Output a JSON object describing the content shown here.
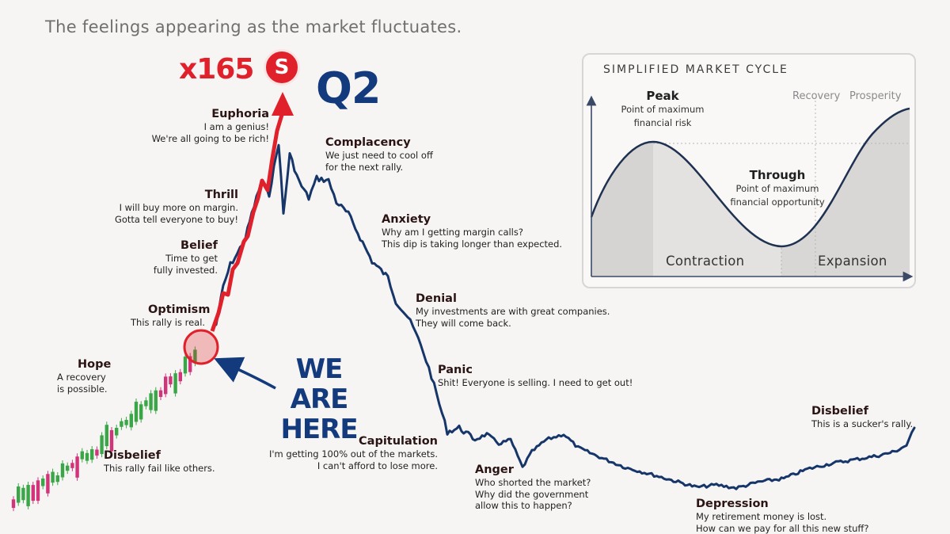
{
  "header": {
    "subtitle": "The feelings appearing as the market fluctuates."
  },
  "callouts": {
    "multiplier": "x165",
    "coin_symbol": "S",
    "quarter": "Q2",
    "position_line1": "WE ARE",
    "position_line2": "HERE",
    "accent_red": "#e0202a",
    "accent_blue": "#123a7c"
  },
  "stages": {
    "disbelief1": {
      "title": "Disbelief",
      "l1": "This rally fail like others."
    },
    "hope": {
      "title": "Hope",
      "l1": "A recovery",
      "l2": "is possible."
    },
    "optimism": {
      "title": "Optimism",
      "l1": "This rally is real."
    },
    "belief": {
      "title": "Belief",
      "l1": "Time to get",
      "l2": "fully invested."
    },
    "thrill": {
      "title": "Thrill",
      "l1": "I will buy more on margin.",
      "l2": "Gotta tell everyone to buy!"
    },
    "euphoria": {
      "title": "Euphoria",
      "l1": "I am a genius!",
      "l2": "We're all going to be rich!"
    },
    "complacency": {
      "title": "Complacency",
      "l1": "We just need to cool off",
      "l2": "for the next rally."
    },
    "anxiety": {
      "title": "Anxiety",
      "l1": "Why am I getting margin calls?",
      "l2": "This dip is taking longer than expected."
    },
    "denial": {
      "title": "Denial",
      "l1": "My investments are with great companies.",
      "l2": "They will come back."
    },
    "panic": {
      "title": "Panic",
      "l1": "Shit! Everyone is selling. I need to get out!"
    },
    "capitulation": {
      "title": "Capitulation",
      "l1": "I'm getting 100% out of the markets.",
      "l2": "I can't afford to lose more."
    },
    "anger": {
      "title": "Anger",
      "l1": "Who shorted the market?",
      "l2": "Why did the government",
      "l3": "allow this to happen?"
    },
    "depression": {
      "title": "Depression",
      "l1": "My retirement money is lost.",
      "l2": "How can we pay for all this new stuff?"
    },
    "disbelief2": {
      "title": "Disbelief",
      "l1": "This is a sucker's rally."
    }
  },
  "inset": {
    "title": "SIMPLIFIED MARKET CYCLE",
    "peak": {
      "title": "Peak",
      "l1": "Point of maximum",
      "l2": "financial risk"
    },
    "through": {
      "title": "Through",
      "l1": "Point of maximum",
      "l2": "financial opportunity"
    },
    "recovery": "Recovery",
    "prosperity": "Prosperity",
    "contraction": "Contraction",
    "expansion": "Expansion"
  },
  "colors": {
    "line": "#16366a",
    "candle_up": "#3aa648",
    "candle_down": "#d2347a",
    "background": "#f7f5f3"
  }
}
